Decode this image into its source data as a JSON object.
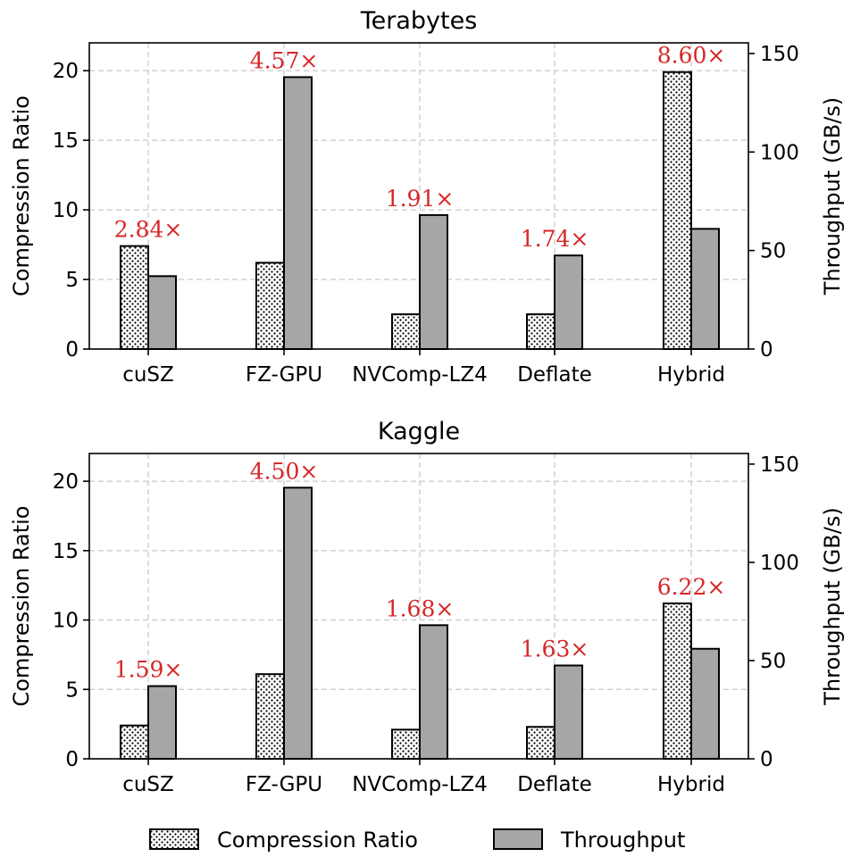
{
  "chart_data": [
    {
      "type": "bar",
      "title": "Terabytes",
      "categories": [
        "cuSZ",
        "FZ-GPU",
        "NVComp-LZ4",
        "Deflate",
        "Hybrid"
      ],
      "series": [
        {
          "name": "Compression Ratio",
          "axis": "left",
          "values": [
            7.4,
            6.2,
            2.5,
            2.5,
            19.9
          ]
        },
        {
          "name": "Throughput",
          "axis": "right",
          "values": [
            37,
            138,
            68,
            47.5,
            61
          ]
        }
      ],
      "annotations": [
        "2.84×",
        "4.57×",
        "1.91×",
        "1.74×",
        "8.60×"
      ],
      "ylabel": "Compression Ratio",
      "ylabel_right": "Throughput (GB/s)",
      "ylim": [
        0,
        22
      ],
      "ylim_right": [
        0,
        155.4
      ],
      "yticks": [
        0,
        5,
        10,
        15,
        20
      ],
      "yticks_right": [
        0,
        50,
        100,
        150
      ],
      "grid": true
    },
    {
      "type": "bar",
      "title": "Kaggle",
      "categories": [
        "cuSZ",
        "FZ-GPU",
        "NVComp-LZ4",
        "Deflate",
        "Hybrid"
      ],
      "series": [
        {
          "name": "Compression Ratio",
          "axis": "left",
          "values": [
            2.4,
            6.1,
            2.1,
            2.3,
            11.2
          ]
        },
        {
          "name": "Throughput",
          "axis": "right",
          "values": [
            37,
            138,
            68,
            47.5,
            56
          ]
        }
      ],
      "annotations": [
        "1.59×",
        "4.50×",
        "1.68×",
        "1.63×",
        "6.22×"
      ],
      "ylabel": "Compression Ratio",
      "ylabel_right": "Throughput (GB/s)",
      "ylim": [
        0,
        22
      ],
      "ylim_right": [
        0,
        155.4
      ],
      "yticks": [
        0,
        5,
        10,
        15,
        20
      ],
      "yticks_right": [
        0,
        50,
        100,
        150
      ],
      "grid": true
    }
  ],
  "legend": {
    "placement": "bottom-center",
    "items": [
      "Compression Ratio",
      "Throughput"
    ]
  },
  "colors": {
    "throughput_fill": "#a6a6a6",
    "ratio_fill": "#ffffff",
    "annotation": "#d62728",
    "grid": "#d0d0d0"
  }
}
